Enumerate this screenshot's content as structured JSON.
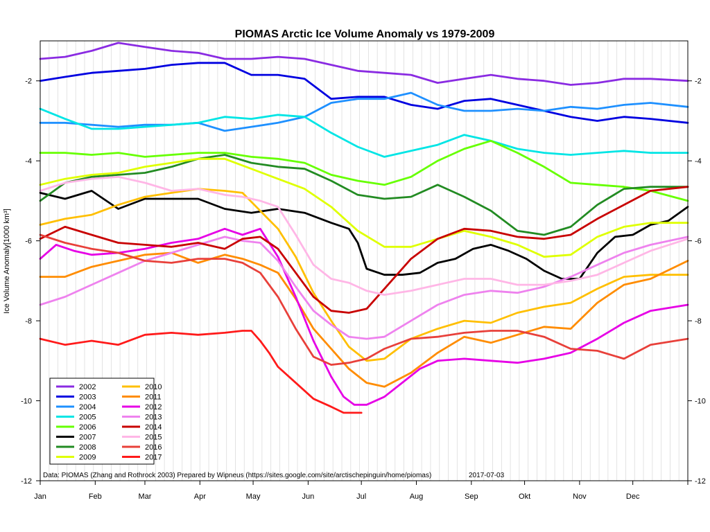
{
  "chart_data": {
    "type": "line",
    "title": "PIOMAS Arctic Ice Volume Anomaly vs 1979-2009",
    "ylabel": "Ice Volume Anomaly[1000 km³]",
    "xlabel": "",
    "ylim": [
      -12,
      -1
    ],
    "xlim": [
      1,
      366
    ],
    "yticks": [
      -12,
      -10,
      -8,
      -6,
      -4,
      -2
    ],
    "grid": "vertical",
    "legend_position": "bottom-left",
    "months": [
      {
        "label": "Jan",
        "day": 1
      },
      {
        "label": "Feb",
        "day": 32
      },
      {
        "label": "Mar",
        "day": 60
      },
      {
        "label": "Apr",
        "day": 91
      },
      {
        "label": "May",
        "day": 121
      },
      {
        "label": "Jun",
        "day": 152
      },
      {
        "label": "Jul",
        "day": 182
      },
      {
        "label": "Aug",
        "day": 213
      },
      {
        "label": "Sep",
        "day": 244
      },
      {
        "label": "Okt",
        "day": 274
      },
      {
        "label": "Nov",
        "day": 305
      },
      {
        "label": "Dec",
        "day": 335
      }
    ],
    "annotation": "Data: PIOMAS (Zhang and Rothrock 2003) Prepared by Wipneus (https://sites.google.com/site/arctischepinguin/home/piomas)",
    "date": "2017-07-03",
    "series": [
      {
        "name": "2002",
        "color": "#8a2be2",
        "x": [
          1,
          15,
          30,
          45,
          60,
          75,
          90,
          105,
          120,
          135,
          150,
          165,
          180,
          195,
          210,
          225,
          240,
          255,
          270,
          285,
          300,
          315,
          330,
          345,
          366
        ],
        "y": [
          -1.45,
          -1.4,
          -1.25,
          -1.05,
          -1.15,
          -1.25,
          -1.3,
          -1.45,
          -1.45,
          -1.4,
          -1.45,
          -1.6,
          -1.75,
          -1.8,
          -1.85,
          -2.05,
          -1.95,
          -1.85,
          -1.95,
          -2.0,
          -2.1,
          -2.05,
          -1.95,
          -1.95,
          -2.0
        ]
      },
      {
        "name": "2003",
        "color": "#0000e0",
        "x": [
          1,
          15,
          30,
          45,
          60,
          75,
          90,
          105,
          120,
          135,
          150,
          165,
          180,
          195,
          210,
          225,
          240,
          255,
          270,
          285,
          300,
          315,
          330,
          345,
          366
        ],
        "y": [
          -2.0,
          -1.9,
          -1.8,
          -1.75,
          -1.7,
          -1.6,
          -1.55,
          -1.55,
          -1.85,
          -1.85,
          -1.95,
          -2.45,
          -2.4,
          -2.4,
          -2.6,
          -2.7,
          -2.5,
          -2.45,
          -2.6,
          -2.75,
          -2.9,
          -3.0,
          -2.9,
          -2.95,
          -3.05
        ]
      },
      {
        "name": "2004",
        "color": "#1e90ff",
        "x": [
          1,
          15,
          30,
          45,
          60,
          75,
          90,
          105,
          120,
          135,
          150,
          165,
          180,
          195,
          210,
          225,
          240,
          255,
          270,
          285,
          300,
          315,
          330,
          345,
          366
        ],
        "y": [
          -3.05,
          -3.05,
          -3.1,
          -3.15,
          -3.1,
          -3.1,
          -3.05,
          -3.25,
          -3.15,
          -3.05,
          -2.9,
          -2.55,
          -2.45,
          -2.45,
          -2.3,
          -2.6,
          -2.75,
          -2.75,
          -2.7,
          -2.75,
          -2.65,
          -2.7,
          -2.6,
          -2.55,
          -2.65
        ]
      },
      {
        "name": "2005",
        "color": "#00e5e5",
        "x": [
          1,
          15,
          30,
          45,
          60,
          75,
          90,
          105,
          120,
          135,
          150,
          165,
          180,
          195,
          210,
          225,
          240,
          255,
          270,
          285,
          300,
          315,
          330,
          345,
          366
        ],
        "y": [
          -2.7,
          -2.95,
          -3.2,
          -3.2,
          -3.15,
          -3.1,
          -3.05,
          -2.9,
          -2.95,
          -2.85,
          -2.9,
          -3.3,
          -3.65,
          -3.9,
          -3.75,
          -3.6,
          -3.35,
          -3.5,
          -3.7,
          -3.8,
          -3.85,
          -3.8,
          -3.75,
          -3.8,
          -3.8
        ]
      },
      {
        "name": "2006",
        "color": "#66ff00",
        "x": [
          1,
          15,
          30,
          45,
          60,
          75,
          90,
          105,
          120,
          135,
          150,
          165,
          180,
          195,
          210,
          225,
          240,
          255,
          270,
          285,
          300,
          315,
          330,
          345,
          366
        ],
        "y": [
          -3.8,
          -3.8,
          -3.85,
          -3.8,
          -3.9,
          -3.85,
          -3.8,
          -3.8,
          -3.9,
          -3.95,
          -4.05,
          -4.35,
          -4.5,
          -4.6,
          -4.4,
          -4.0,
          -3.7,
          -3.5,
          -3.8,
          -4.15,
          -4.55,
          -4.6,
          -4.65,
          -4.75,
          -5.0
        ]
      },
      {
        "name": "2007",
        "color": "#000000",
        "x": [
          1,
          15,
          30,
          45,
          60,
          75,
          90,
          105,
          120,
          135,
          150,
          165,
          175,
          180,
          185,
          195,
          205,
          215,
          225,
          235,
          245,
          255,
          265,
          275,
          285,
          295,
          305,
          315,
          325,
          335,
          345,
          355,
          366
        ],
        "y": [
          -4.8,
          -4.95,
          -4.75,
          -5.2,
          -4.95,
          -4.95,
          -4.95,
          -5.2,
          -5.3,
          -5.2,
          -5.3,
          -5.55,
          -5.7,
          -6.05,
          -6.7,
          -6.85,
          -6.85,
          -6.8,
          -6.55,
          -6.45,
          -6.2,
          -6.1,
          -6.25,
          -6.45,
          -6.75,
          -6.95,
          -6.95,
          -6.3,
          -5.9,
          -5.85,
          -5.6,
          -5.5,
          -5.15
        ]
      },
      {
        "name": "2008",
        "color": "#228b22",
        "x": [
          1,
          15,
          30,
          45,
          60,
          75,
          90,
          105,
          120,
          135,
          150,
          165,
          180,
          195,
          210,
          225,
          240,
          255,
          270,
          285,
          300,
          315,
          330,
          345,
          366
        ],
        "y": [
          -5.0,
          -4.55,
          -4.4,
          -4.35,
          -4.3,
          -4.15,
          -3.95,
          -3.85,
          -4.05,
          -4.15,
          -4.2,
          -4.5,
          -4.85,
          -4.95,
          -4.9,
          -4.6,
          -4.9,
          -5.25,
          -5.75,
          -5.85,
          -5.65,
          -5.1,
          -4.7,
          -4.65,
          -4.65
        ]
      },
      {
        "name": "2009",
        "color": "#dfff00",
        "x": [
          1,
          15,
          30,
          45,
          60,
          75,
          90,
          105,
          120,
          135,
          150,
          165,
          180,
          195,
          210,
          225,
          240,
          255,
          270,
          285,
          300,
          315,
          330,
          345,
          366
        ],
        "y": [
          -4.6,
          -4.45,
          -4.35,
          -4.3,
          -4.15,
          -4.05,
          -3.95,
          -3.95,
          -4.2,
          -4.45,
          -4.7,
          -5.15,
          -5.75,
          -6.15,
          -6.15,
          -5.95,
          -5.75,
          -5.9,
          -6.1,
          -6.4,
          -6.35,
          -5.9,
          -5.65,
          -5.55,
          -5.55
        ]
      },
      {
        "name": "2010",
        "color": "#ffbf00",
        "x": [
          1,
          15,
          30,
          45,
          60,
          75,
          90,
          105,
          115,
          125,
          135,
          145,
          155,
          165,
          175,
          185,
          195,
          210,
          225,
          240,
          255,
          270,
          285,
          300,
          315,
          330,
          345,
          366
        ],
        "y": [
          -5.6,
          -5.45,
          -5.35,
          -5.1,
          -4.9,
          -4.8,
          -4.7,
          -4.75,
          -4.8,
          -5.25,
          -5.7,
          -6.4,
          -7.3,
          -8.0,
          -8.65,
          -9.0,
          -8.95,
          -8.45,
          -8.2,
          -8.0,
          -8.05,
          -7.8,
          -7.65,
          -7.55,
          -7.2,
          -6.9,
          -6.85,
          -6.85
        ]
      },
      {
        "name": "2011",
        "color": "#ff8c00",
        "x": [
          1,
          15,
          30,
          45,
          60,
          75,
          90,
          105,
          115,
          125,
          135,
          145,
          155,
          165,
          175,
          185,
          195,
          210,
          225,
          240,
          255,
          270,
          285,
          300,
          315,
          330,
          345,
          366
        ],
        "y": [
          -6.9,
          -6.9,
          -6.65,
          -6.5,
          -6.35,
          -6.3,
          -6.55,
          -6.35,
          -6.45,
          -6.6,
          -6.8,
          -7.45,
          -8.2,
          -8.7,
          -9.2,
          -9.55,
          -9.65,
          -9.3,
          -8.8,
          -8.4,
          -8.55,
          -8.35,
          -8.15,
          -8.2,
          -7.55,
          -7.1,
          -6.95,
          -6.5
        ]
      },
      {
        "name": "2012",
        "color": "#e600e6",
        "x": [
          1,
          10,
          20,
          30,
          45,
          60,
          75,
          90,
          105,
          115,
          125,
          135,
          145,
          155,
          165,
          172,
          178,
          185,
          195,
          205,
          215,
          225,
          240,
          255,
          270,
          285,
          300,
          315,
          330,
          345,
          366
        ],
        "y": [
          -6.45,
          -6.1,
          -6.25,
          -6.35,
          -6.3,
          -6.2,
          -6.05,
          -5.95,
          -5.7,
          -5.85,
          -5.7,
          -6.4,
          -7.4,
          -8.5,
          -9.4,
          -9.9,
          -10.1,
          -10.1,
          -9.9,
          -9.55,
          -9.2,
          -9.0,
          -8.95,
          -9.0,
          -9.05,
          -8.95,
          -8.8,
          -8.45,
          -8.05,
          -7.75,
          -7.6
        ]
      },
      {
        "name": "2013",
        "color": "#ee82ee",
        "x": [
          1,
          15,
          30,
          45,
          60,
          75,
          90,
          105,
          115,
          125,
          135,
          145,
          155,
          165,
          175,
          185,
          195,
          210,
          225,
          240,
          255,
          270,
          285,
          300,
          315,
          330,
          345,
          366
        ],
        "y": [
          -7.6,
          -7.4,
          -7.1,
          -6.8,
          -6.5,
          -6.3,
          -6.1,
          -5.9,
          -6.0,
          -6.05,
          -6.5,
          -7.15,
          -7.75,
          -8.1,
          -8.4,
          -8.45,
          -8.4,
          -8.0,
          -7.6,
          -7.35,
          -7.25,
          -7.3,
          -7.15,
          -6.9,
          -6.6,
          -6.3,
          -6.1,
          -5.9
        ]
      },
      {
        "name": "2014",
        "color": "#c80000",
        "x": [
          1,
          15,
          30,
          45,
          60,
          75,
          90,
          105,
          115,
          125,
          135,
          145,
          155,
          165,
          175,
          185,
          195,
          210,
          225,
          240,
          255,
          270,
          285,
          300,
          315,
          330,
          345,
          366
        ],
        "y": [
          -5.95,
          -5.65,
          -5.85,
          -6.05,
          -6.1,
          -6.15,
          -6.05,
          -6.2,
          -5.95,
          -5.9,
          -6.2,
          -6.8,
          -7.4,
          -7.75,
          -7.8,
          -7.7,
          -7.2,
          -6.45,
          -5.95,
          -5.7,
          -5.75,
          -5.9,
          -5.95,
          -5.85,
          -5.45,
          -5.1,
          -4.75,
          -4.65
        ]
      },
      {
        "name": "2015",
        "color": "#ffb6e6",
        "x": [
          1,
          15,
          30,
          45,
          60,
          75,
          90,
          105,
          115,
          125,
          135,
          145,
          155,
          165,
          175,
          185,
          195,
          210,
          225,
          240,
          255,
          270,
          285,
          300,
          315,
          330,
          345,
          366
        ],
        "y": [
          -4.75,
          -4.55,
          -4.45,
          -4.4,
          -4.55,
          -4.75,
          -4.7,
          -4.85,
          -4.9,
          -5.0,
          -5.15,
          -5.85,
          -6.6,
          -6.95,
          -7.05,
          -7.25,
          -7.35,
          -7.25,
          -7.1,
          -6.95,
          -6.95,
          -7.1,
          -7.1,
          -7.0,
          -6.85,
          -6.55,
          -6.25,
          -5.95
        ]
      },
      {
        "name": "2016",
        "color": "#e8403a",
        "x": [
          1,
          15,
          30,
          45,
          60,
          75,
          90,
          105,
          115,
          125,
          135,
          145,
          155,
          165,
          175,
          185,
          195,
          210,
          225,
          240,
          255,
          270,
          285,
          300,
          315,
          330,
          345,
          366
        ],
        "y": [
          -5.85,
          -6.05,
          -6.2,
          -6.3,
          -6.5,
          -6.55,
          -6.45,
          -6.45,
          -6.55,
          -6.8,
          -7.4,
          -8.2,
          -8.9,
          -9.1,
          -9.05,
          -8.95,
          -8.7,
          -8.45,
          -8.4,
          -8.3,
          -8.25,
          -8.25,
          -8.4,
          -8.7,
          -8.75,
          -8.95,
          -8.6,
          -8.45
        ]
      },
      {
        "name": "2017",
        "color": "#ff1a1a",
        "x": [
          1,
          15,
          30,
          45,
          60,
          75,
          90,
          105,
          115,
          120,
          125,
          130,
          135,
          145,
          155,
          165,
          172,
          178,
          182
        ],
        "y": [
          -8.45,
          -8.6,
          -8.5,
          -8.6,
          -8.35,
          -8.3,
          -8.35,
          -8.3,
          -8.25,
          -8.25,
          -8.5,
          -8.8,
          -9.15,
          -9.55,
          -9.95,
          -10.15,
          -10.3,
          -10.3,
          -10.3
        ]
      }
    ]
  }
}
